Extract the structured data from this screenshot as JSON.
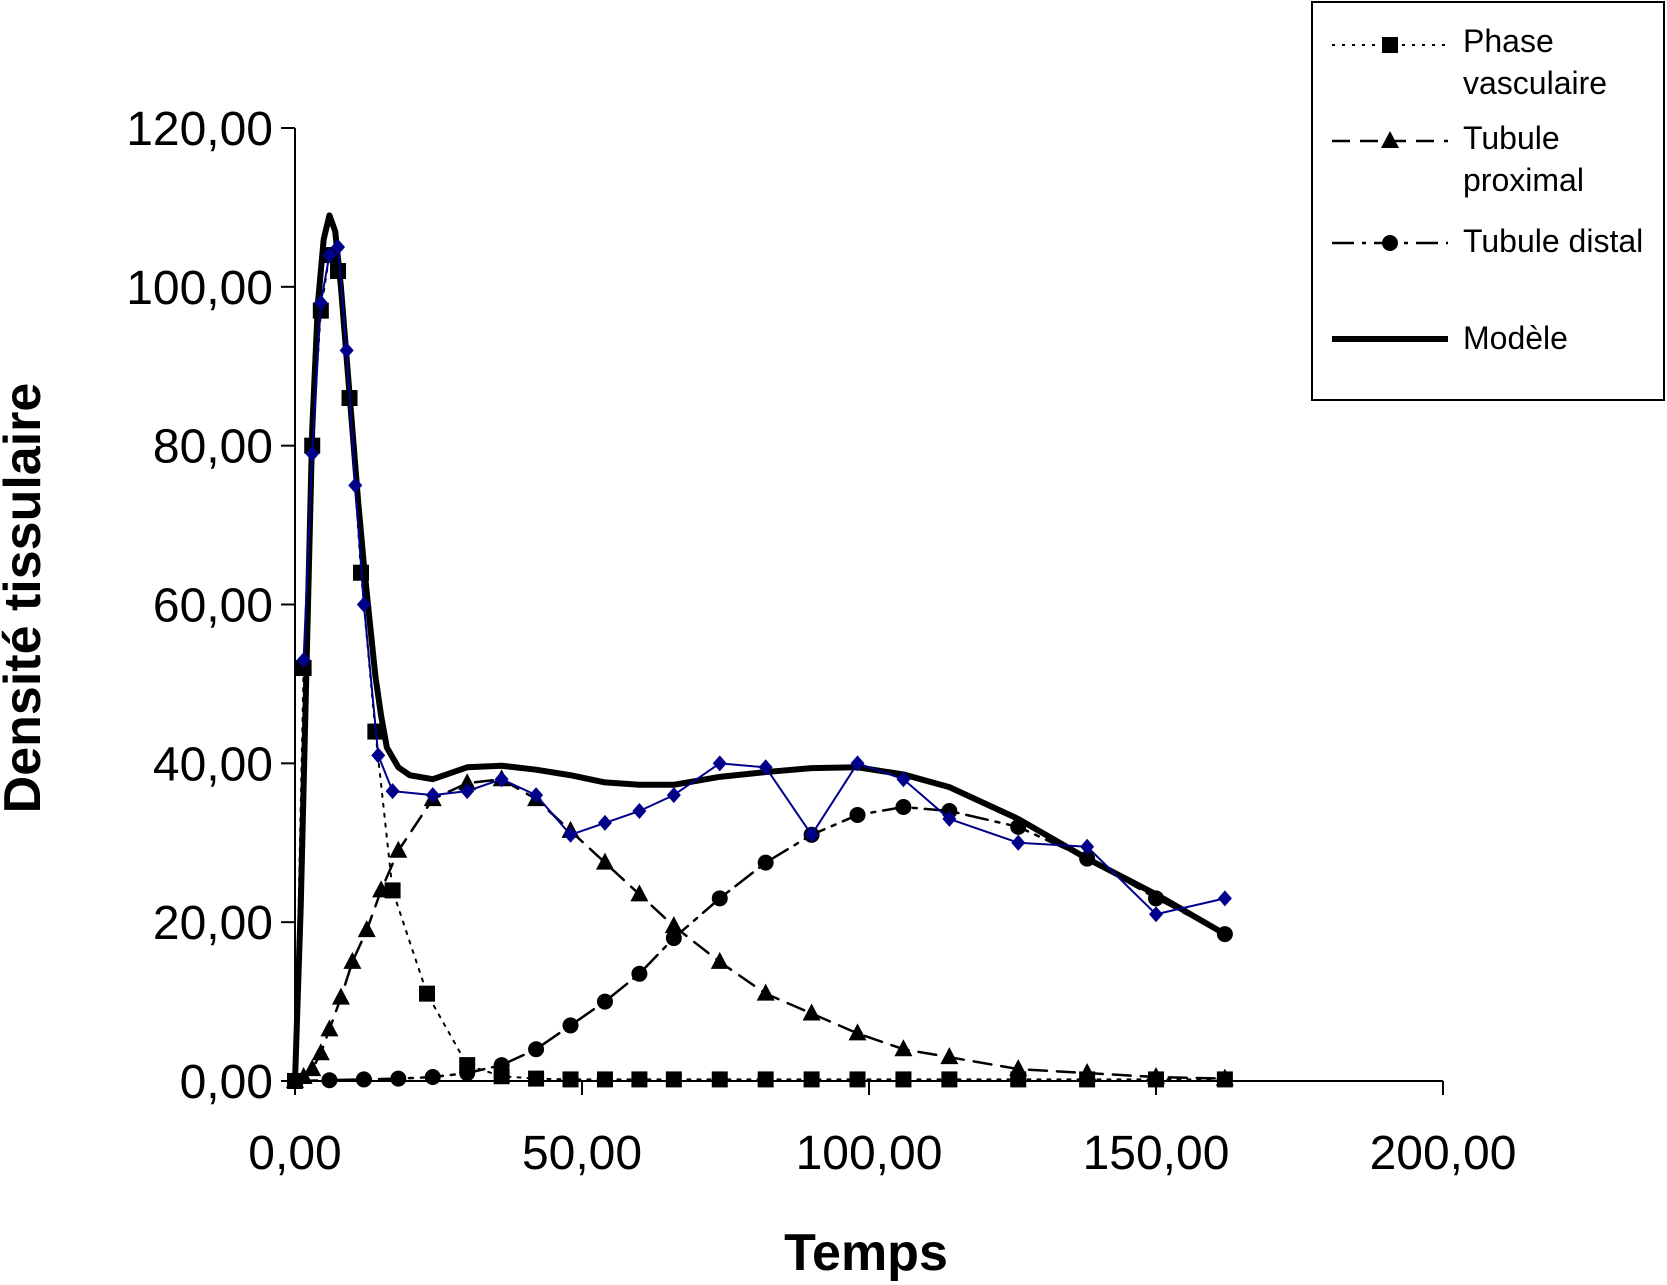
{
  "chart_data": {
    "type": "line",
    "xlabel": "Temps",
    "ylabel": "Densité tissulaire",
    "xlim": [
      0,
      200
    ],
    "ylim": [
      0,
      120
    ],
    "xticks": [
      "0,00",
      "50,00",
      "100,00",
      "150,00",
      "200,00"
    ],
    "yticks": [
      "0,00",
      "20,00",
      "40,00",
      "60,00",
      "80,00",
      "100,00",
      "120,00"
    ],
    "grid": false,
    "legend_position": "top-right",
    "series": [
      {
        "name": "Phase vasculaire",
        "style": "dotted",
        "marker": "square",
        "color": "#000000",
        "x": [
          0,
          1.5,
          3,
          4.5,
          6,
          7.5,
          9.5,
          11.5,
          14,
          17,
          23,
          30,
          36,
          42,
          48,
          54,
          60,
          66,
          74,
          82,
          90,
          98,
          106,
          114,
          126,
          138,
          150,
          162
        ],
        "y": [
          0,
          52,
          80,
          97,
          104,
          102,
          86,
          64,
          44,
          24,
          11,
          2,
          0.6,
          0.3,
          0.2,
          0.2,
          0.2,
          0.2,
          0.2,
          0.2,
          0.2,
          0.2,
          0.2,
          0.2,
          0.2,
          0.2,
          0.2,
          0.2
        ]
      },
      {
        "name": "Tubule proximal",
        "style": "dashed",
        "marker": "triangle",
        "color": "#000000",
        "x": [
          0,
          1.5,
          3,
          4.5,
          6,
          8,
          10,
          12.5,
          15,
          18,
          24,
          30,
          36,
          42,
          48,
          54,
          60,
          66,
          74,
          82,
          90,
          98,
          106,
          114,
          126,
          138,
          150,
          162
        ],
        "y": [
          0,
          0.5,
          1.5,
          3.5,
          6.5,
          10.5,
          15,
          19,
          24,
          29,
          35.5,
          37.5,
          38,
          35.5,
          31.5,
          27.5,
          23.5,
          19.5,
          15,
          11,
          8.5,
          6,
          4,
          3,
          1.5,
          1,
          0.5,
          0.3
        ]
      },
      {
        "name": "Tubule distal",
        "style": "dashdot",
        "marker": "circle",
        "color": "#000000",
        "x": [
          0,
          6,
          12,
          18,
          24,
          30,
          36,
          42,
          48,
          54,
          60,
          66,
          74,
          82,
          90,
          98,
          106,
          114,
          126,
          138,
          150,
          162
        ],
        "y": [
          0,
          0.1,
          0.2,
          0.3,
          0.5,
          1,
          2,
          4,
          7,
          10,
          13.5,
          18,
          23,
          27.5,
          31,
          33.5,
          34.5,
          34,
          32,
          28,
          23,
          18.5
        ]
      },
      {
        "name": "Modèle",
        "style": "solid-thick",
        "marker": "none",
        "color": "#000000",
        "x": [
          0,
          1,
          2,
          3,
          4,
          5,
          6,
          7,
          8,
          9,
          10,
          11,
          12,
          13,
          14,
          15,
          16,
          18,
          20,
          24,
          30,
          36,
          42,
          48,
          54,
          60,
          66,
          74,
          82,
          90,
          98,
          106,
          114,
          126,
          138,
          150,
          162
        ],
        "y": [
          0,
          22,
          52,
          82,
          98,
          106,
          109,
          107,
          100,
          91,
          82,
          73,
          65,
          58,
          51,
          46,
          42,
          39.5,
          38.5,
          38,
          39.5,
          39.7,
          39.2,
          38.5,
          37.6,
          37.3,
          37.3,
          38.3,
          38.9,
          39.4,
          39.5,
          38.6,
          37,
          33,
          28,
          23.5,
          18.5
        ]
      },
      {
        "name": "",
        "style": "solid-thin",
        "marker": "diamond",
        "color": "#00008B",
        "x": [
          1.5,
          3,
          4.5,
          6,
          7.5,
          9,
          10.5,
          12,
          14.5,
          17,
          24,
          30,
          36,
          42,
          48,
          54,
          60,
          66,
          74,
          82,
          90,
          98,
          106,
          114,
          126,
          138,
          150,
          162
        ],
        "y": [
          53,
          79,
          98,
          104,
          105,
          92,
          75,
          60,
          41,
          36.5,
          36,
          36.5,
          38,
          36,
          31,
          32.5,
          34,
          36,
          40,
          39.5,
          31,
          40,
          38,
          33,
          30,
          29.5,
          21,
          23
        ]
      }
    ]
  }
}
